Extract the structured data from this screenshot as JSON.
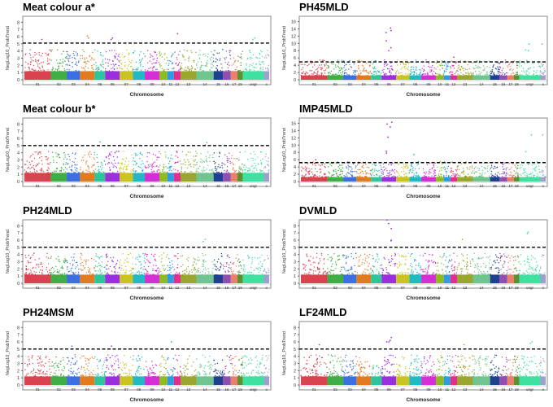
{
  "chromosomes": [
    {
      "label": "01",
      "rel": 10,
      "color": "#d9434f"
    },
    {
      "label": "02",
      "rel": 6,
      "color": "#3fae45"
    },
    {
      "label": "03",
      "rel": 5,
      "color": "#3c6fe0"
    },
    {
      "label": "04",
      "rel": 5.5,
      "color": "#e07b22"
    },
    {
      "label": "05",
      "rel": 4,
      "color": "#2fc49a"
    },
    {
      "label": "06",
      "rel": 5.5,
      "color": "#9b2fe0"
    },
    {
      "label": "07",
      "rel": 5,
      "color": "#c9c422"
    },
    {
      "label": "08",
      "rel": 4.5,
      "color": "#22b8c4"
    },
    {
      "label": "09",
      "rel": 5.5,
      "color": "#d42fd4"
    },
    {
      "label": "10",
      "rel": 3,
      "color": "#8fba22"
    },
    {
      "label": "11",
      "rel": 2.5,
      "color": "#2f9be0"
    },
    {
      "label": "12",
      "rel": 2.5,
      "color": "#e02f8f"
    },
    {
      "label": "13",
      "rel": 6,
      "color": "#9aa62f"
    },
    {
      "label": "14",
      "rel": 6.5,
      "color": "#6fc48f"
    },
    {
      "label": "15",
      "rel": 3.5,
      "color": "#1f3f8f"
    },
    {
      "label": "16",
      "rel": 3,
      "color": "#8f4fb0"
    },
    {
      "label": "17",
      "rel": 2.5,
      "color": "#e8806a"
    },
    {
      "label": "18",
      "rel": 2,
      "color": "#5f8f2f"
    },
    {
      "label": "ungr",
      "rel": 8,
      "color": "#3fe0a0"
    },
    {
      "label": "x",
      "rel": 2,
      "color": "#a0a0d0"
    }
  ],
  "chart_data": [
    {
      "type": "scatter",
      "title": "Meat colour a*",
      "xlabel": "Chromosome",
      "ylabel": "NegLog10_ProbTrend",
      "ylim": [
        0,
        8.6
      ],
      "yticks": [
        0,
        1,
        2,
        3,
        4,
        5,
        6,
        7,
        8
      ],
      "threshold": 5.1,
      "peaks": [
        [
          "01",
          5.6
        ],
        [
          "04",
          6.1
        ],
        [
          "04",
          5.8
        ],
        [
          "06",
          5.8
        ],
        [
          "06",
          5.6
        ],
        [
          "12",
          6.4
        ],
        [
          "ungr",
          5.8
        ],
        [
          "ungr",
          5.6
        ]
      ]
    },
    {
      "type": "scatter",
      "title": "PH45MLD",
      "xlabel": "Chromosome",
      "ylabel": "NegLog10_ProbTrend",
      "ylim": [
        0,
        17
      ],
      "yticks": [
        0,
        2,
        4,
        6,
        8,
        10,
        12,
        14,
        16
      ],
      "threshold": 4.9,
      "peaks": [
        [
          "06",
          14.2
        ],
        [
          "06",
          13.5
        ],
        [
          "06",
          13
        ],
        [
          "06",
          10.7
        ],
        [
          "06",
          8.8
        ],
        [
          "06",
          8
        ],
        [
          "12",
          6.2
        ],
        [
          "ungr",
          9.8
        ],
        [
          "ungr",
          8.2
        ],
        [
          "ungr",
          8
        ],
        [
          "x",
          9.8
        ]
      ]
    },
    {
      "type": "scatter",
      "title": "Meat colour b*",
      "xlabel": "Chromosome",
      "ylabel": "NegLog10_ProbTrend",
      "ylim": [
        0,
        8.6
      ],
      "yticks": [
        0,
        1,
        2,
        3,
        4,
        5,
        6,
        7,
        8
      ],
      "threshold": 5.0,
      "peaks": [
        [
          "05",
          5.5
        ],
        [
          "14",
          5.4
        ],
        [
          "14",
          5.1
        ]
      ]
    },
    {
      "type": "scatter",
      "title": "IMP45MLD",
      "xlabel": "Chromosome",
      "ylabel": "NegLog10_ProbTrend",
      "ylim": [
        0,
        17
      ],
      "yticks": [
        0,
        2,
        4,
        6,
        8,
        10,
        12,
        14,
        16
      ],
      "threshold": 5.2,
      "peaks": [
        [
          "01",
          6
        ],
        [
          "06",
          16.3
        ],
        [
          "06",
          15.8
        ],
        [
          "06",
          15
        ],
        [
          "06",
          12.2
        ],
        [
          "06",
          8.3
        ],
        [
          "06",
          7.8
        ],
        [
          "08",
          7.4
        ],
        [
          "ungr",
          12.8
        ],
        [
          "ungr",
          8.2
        ],
        [
          "x",
          12.8
        ]
      ]
    },
    {
      "type": "scatter",
      "title": "PH24MLD",
      "xlabel": "Chromosome",
      "ylabel": "NegLog10_ProbTrend",
      "ylim": [
        0,
        8.6
      ],
      "yticks": [
        0,
        1,
        2,
        3,
        4,
        5,
        6,
        7,
        8
      ],
      "threshold": 5.0,
      "peaks": [
        [
          "14",
          6.1
        ],
        [
          "14",
          5.8
        ]
      ]
    },
    {
      "type": "scatter",
      "title": "DVMLD",
      "xlabel": "Chromosome",
      "ylabel": "NegLog10_ProbTrend",
      "ylim": [
        0,
        8.6
      ],
      "yticks": [
        0,
        1,
        2,
        3,
        4,
        5,
        6,
        7,
        8
      ],
      "threshold": 5.0,
      "peaks": [
        [
          "06",
          8.8
        ],
        [
          "06",
          8.3
        ],
        [
          "06",
          7.6
        ],
        [
          "06",
          6
        ],
        [
          "06",
          5.9
        ],
        [
          "13",
          6.1
        ],
        [
          "ungr",
          7.1
        ],
        [
          "ungr",
          6.9
        ]
      ]
    },
    {
      "type": "scatter",
      "title": "PH24MSM",
      "xlabel": "Chromosome",
      "ylabel": "NegLog10_ProbTrend",
      "ylim": [
        0,
        8.6
      ],
      "yticks": [
        0,
        1,
        2,
        3,
        4,
        5,
        6,
        7,
        8
      ],
      "threshold": 5.0,
      "peaks": [
        [
          "03",
          5.4
        ],
        [
          "06",
          5.4
        ],
        [
          "11",
          6.0
        ]
      ]
    },
    {
      "type": "scatter",
      "title": "LF24MLD",
      "xlabel": "Chromosome",
      "ylabel": "NegLog10_ProbTrend",
      "ylim": [
        0,
        8.6
      ],
      "yticks": [
        0,
        1,
        2,
        3,
        4,
        5,
        6,
        7,
        8
      ],
      "threshold": 5.0,
      "peaks": [
        [
          "01",
          5.6
        ],
        [
          "06",
          6.6
        ],
        [
          "06",
          6.2
        ],
        [
          "06",
          6.0
        ],
        [
          "06",
          6.0
        ],
        [
          "13",
          5.6
        ],
        [
          "ungr",
          6.0
        ],
        [
          "ungr",
          5.8
        ]
      ]
    }
  ]
}
